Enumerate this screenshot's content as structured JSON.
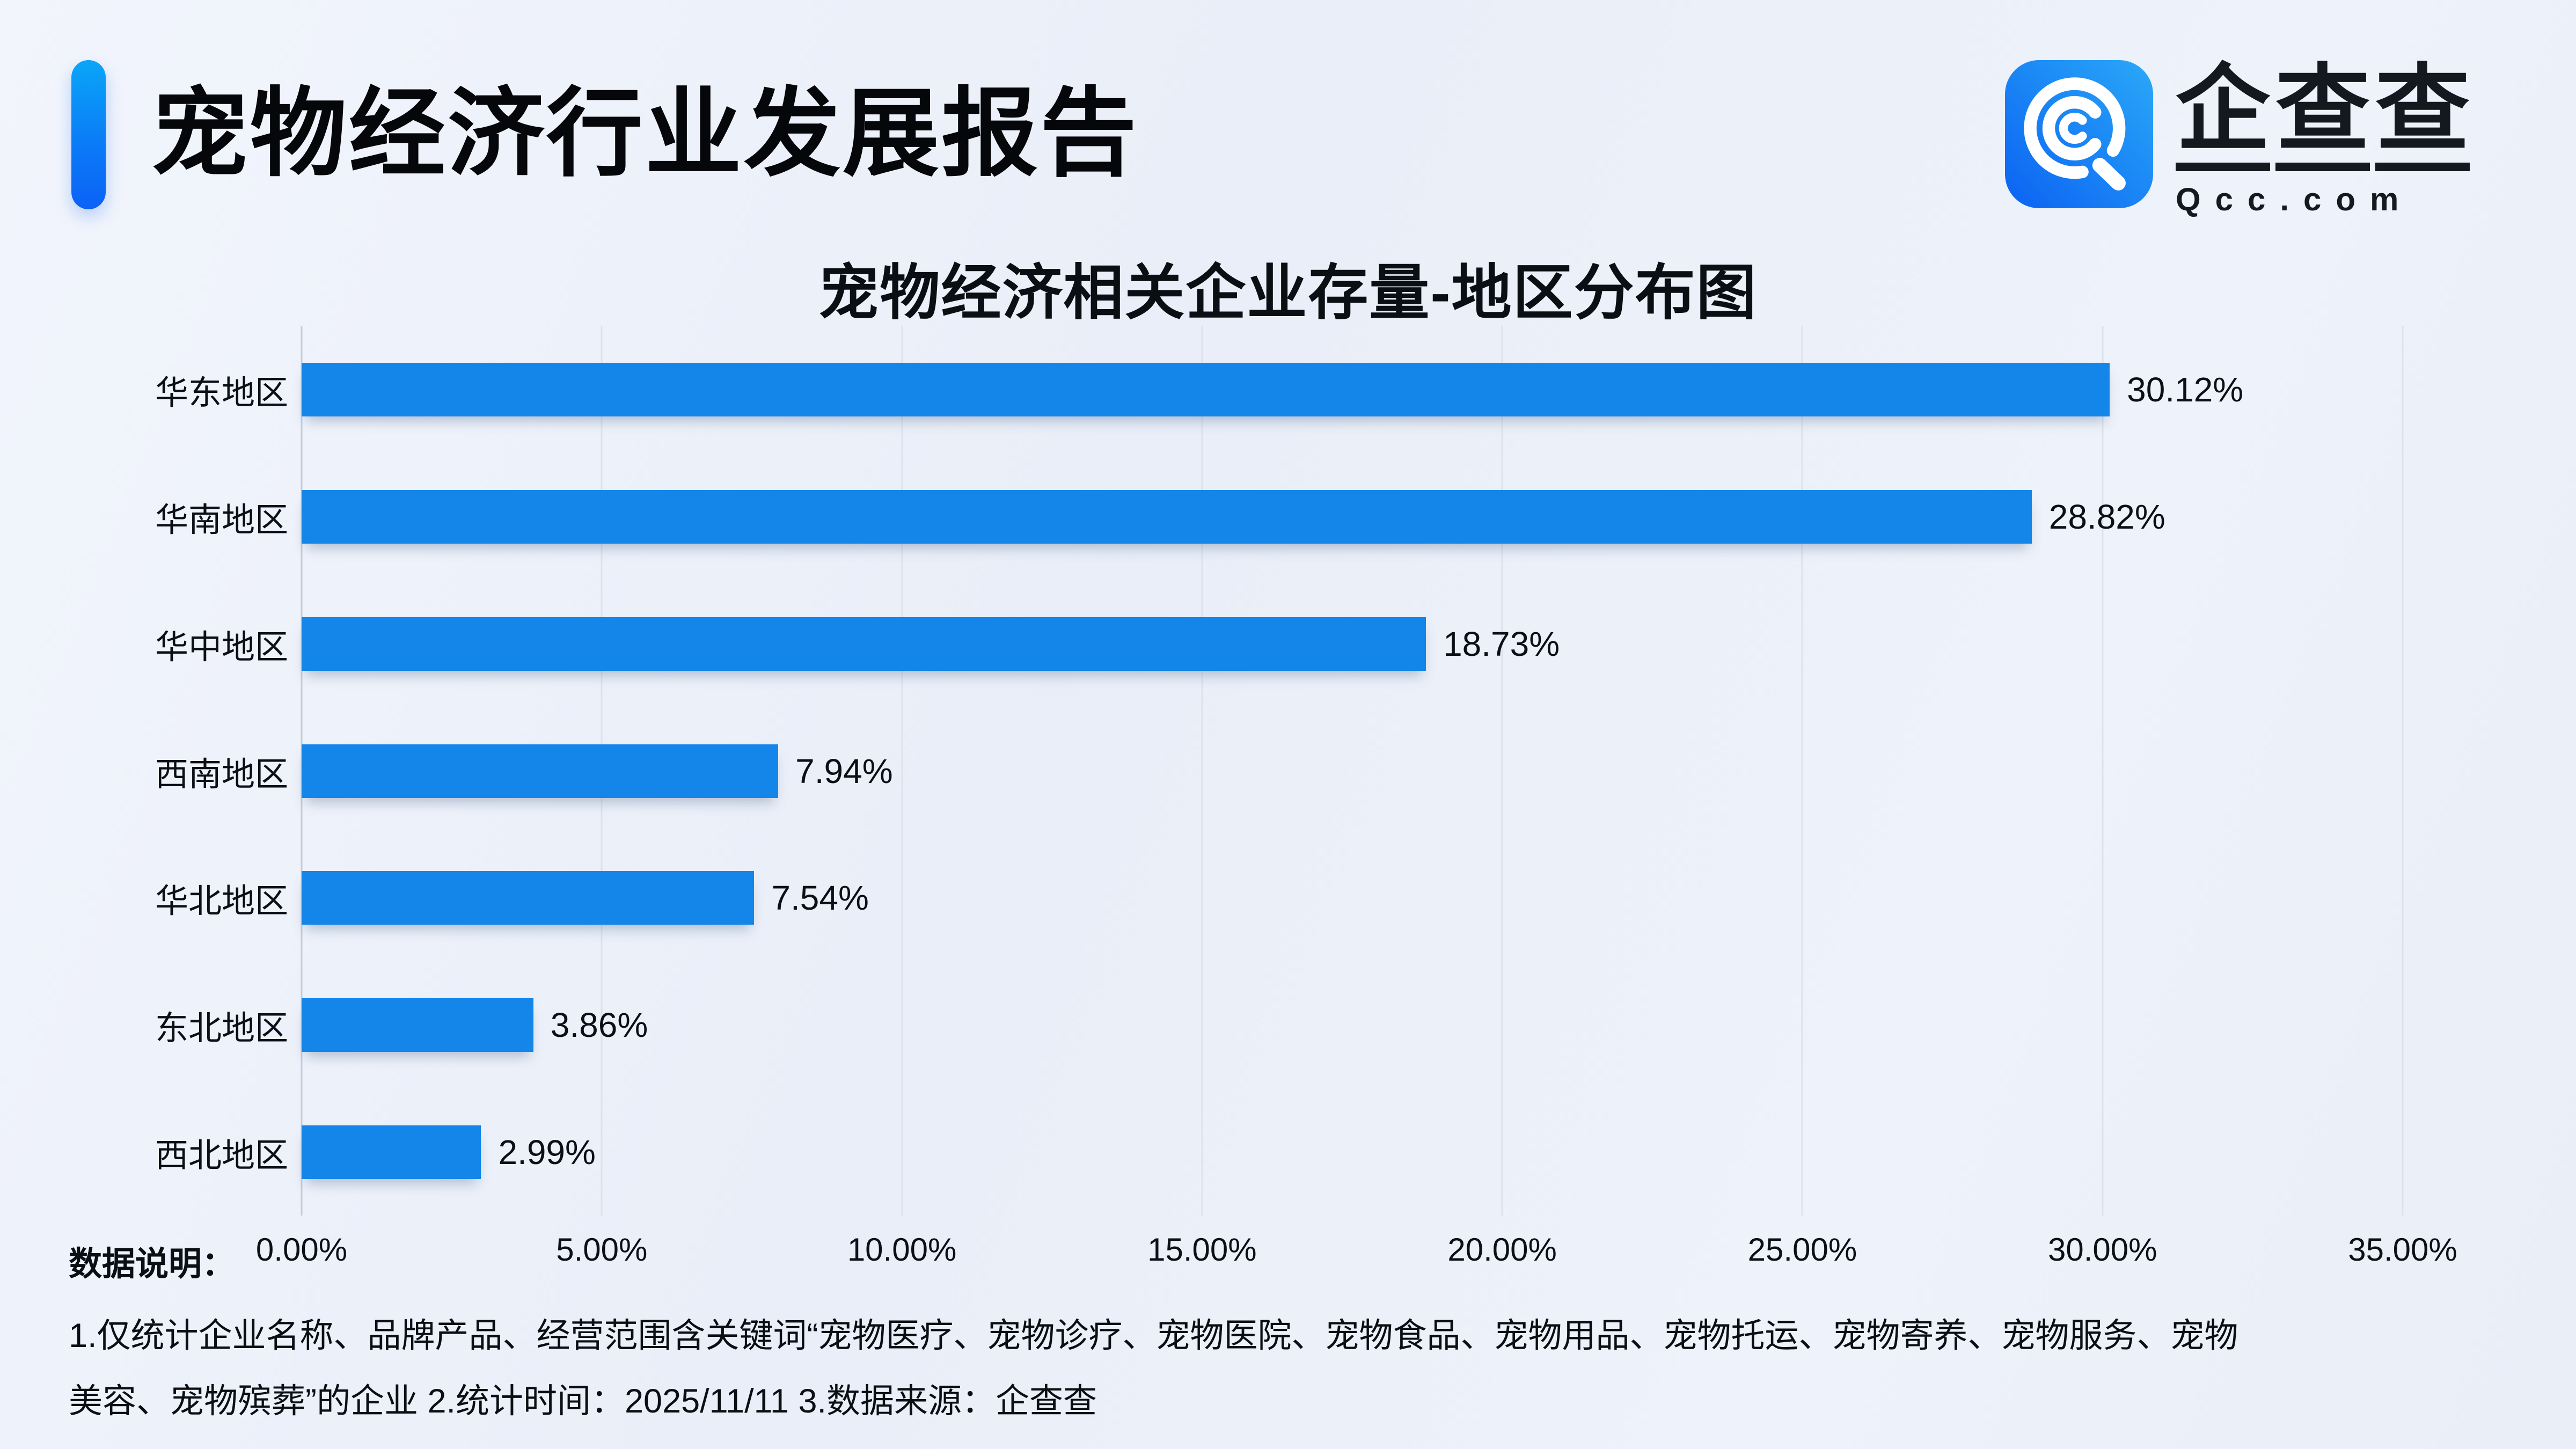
{
  "header": {
    "title": "宠物经济行业发展报告"
  },
  "logo": {
    "name_chars": [
      "企",
      "查",
      "查"
    ],
    "domain": "Qcc.com",
    "icon_gradient_light": "#2aa9f8",
    "icon_gradient_dark": "#0b62f2"
  },
  "chart_data": {
    "type": "bar",
    "orientation": "horizontal",
    "title": "宠物经济相关企业存量-地区分布图",
    "categories": [
      "华东地区",
      "华南地区",
      "华中地区",
      "西南地区",
      "华北地区",
      "东北地区",
      "西北地区"
    ],
    "values": [
      30.12,
      28.82,
      18.73,
      7.94,
      7.54,
      3.86,
      2.99
    ],
    "value_labels": [
      "30.12%",
      "28.82%",
      "18.73%",
      "7.94%",
      "7.54%",
      "3.86%",
      "2.99%"
    ],
    "xlim": [
      0,
      35
    ],
    "x_ticks": [
      "0.00%",
      "5.00%",
      "10.00%",
      "15.00%",
      "20.00%",
      "25.00%",
      "30.00%",
      "35.00%"
    ],
    "grid": true,
    "legend": false,
    "bar_color": "#1586e9"
  },
  "footer": {
    "label": "数据说明：",
    "notes": [
      "1.仅统计企业名称、品牌产品、经营范围含关键词“宠物医疗、宠物诊疗、宠物医院、宠物食品、宠物用品、宠物托运、宠物寄养、宠物服务、宠物",
      "美容、宠物殡葬”的企业  2.统计时间：2025/11/11   3.数据来源：企查查"
    ]
  }
}
